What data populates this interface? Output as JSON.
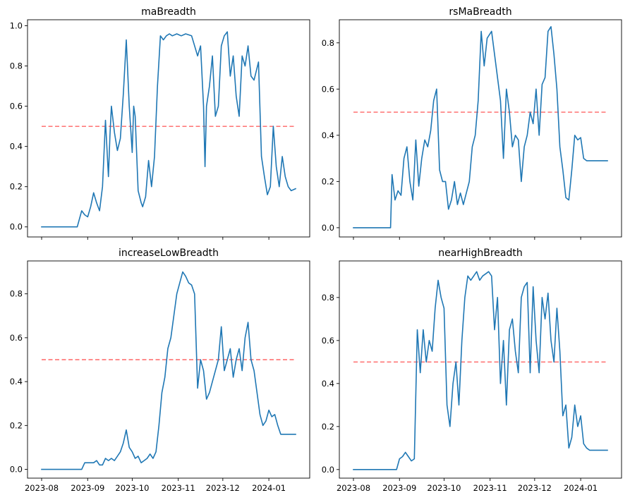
{
  "colors": {
    "series": "#1f77b4",
    "reference": "#ff6666"
  },
  "chart_data": [
    {
      "type": "line",
      "title": "maBreadth",
      "x_range": [
        "2023-08-01",
        "2024-01-19"
      ],
      "ylim": [
        -0.05,
        1.03
      ],
      "y_ticks": [
        0.0,
        0.2,
        0.4,
        0.6,
        0.8,
        1.0
      ],
      "y_tick_labels": [
        "0.0",
        "0.2",
        "0.4",
        "0.6",
        "0.8",
        "1.0"
      ],
      "x_ticks": [
        "2023-08-01",
        "2023-09-01",
        "2023-10-01",
        "2023-11-01",
        "2023-12-01",
        "2024-01-01"
      ],
      "x_tick_labels": [
        "",
        "",
        "",
        "",
        "",
        ""
      ],
      "reference_line": 0.5,
      "x": [
        "2023-08-01",
        "2023-08-25",
        "2023-08-28",
        "2023-08-30",
        "2023-09-01",
        "2023-09-03",
        "2023-09-05",
        "2023-09-07",
        "2023-09-09",
        "2023-09-11",
        "2023-09-13",
        "2023-09-15",
        "2023-09-16",
        "2023-09-17",
        "2023-09-19",
        "2023-09-21",
        "2023-09-23",
        "2023-09-25",
        "2023-09-27",
        "2023-09-29",
        "2023-10-01",
        "2023-10-02",
        "2023-10-03",
        "2023-10-05",
        "2023-10-07",
        "2023-10-08",
        "2023-10-10",
        "2023-10-12",
        "2023-10-14",
        "2023-10-16",
        "2023-10-18",
        "2023-10-20",
        "2023-10-22",
        "2023-10-24",
        "2023-10-26",
        "2023-10-28",
        "2023-10-31",
        "2023-11-03",
        "2023-11-06",
        "2023-11-10",
        "2023-11-14",
        "2023-11-16",
        "2023-11-18",
        "2023-11-19",
        "2023-11-20",
        "2023-11-22",
        "2023-11-24",
        "2023-11-26",
        "2023-11-28",
        "2023-11-30",
        "2023-12-02",
        "2023-12-04",
        "2023-12-06",
        "2023-12-08",
        "2023-12-10",
        "2023-12-12",
        "2023-12-14",
        "2023-12-16",
        "2023-12-18",
        "2023-12-20",
        "2023-12-22",
        "2023-12-25",
        "2023-12-27",
        "2023-12-29",
        "2023-12-31",
        "2024-01-02",
        "2024-01-04",
        "2024-01-06",
        "2024-01-08",
        "2024-01-10",
        "2024-01-12",
        "2024-01-14",
        "2024-01-16",
        "2024-01-19"
      ],
      "series": [
        {
          "values": [
            0.0,
            0.0,
            0.08,
            0.06,
            0.05,
            0.1,
            0.17,
            0.12,
            0.08,
            0.2,
            0.53,
            0.25,
            0.45,
            0.6,
            0.47,
            0.38,
            0.44,
            0.66,
            0.93,
            0.6,
            0.37,
            0.6,
            0.55,
            0.18,
            0.12,
            0.1,
            0.15,
            0.33,
            0.2,
            0.35,
            0.7,
            0.95,
            0.93,
            0.95,
            0.96,
            0.95,
            0.96,
            0.95,
            0.96,
            0.95,
            0.85,
            0.9,
            0.6,
            0.3,
            0.6,
            0.7,
            0.85,
            0.55,
            0.6,
            0.9,
            0.95,
            0.97,
            0.75,
            0.85,
            0.65,
            0.55,
            0.85,
            0.8,
            0.9,
            0.75,
            0.73,
            0.82,
            0.35,
            0.25,
            0.16,
            0.2,
            0.5,
            0.3,
            0.2,
            0.35,
            0.25,
            0.2,
            0.18,
            0.19
          ]
        }
      ]
    },
    {
      "type": "line",
      "title": "rsMaBreadth",
      "x_range": [
        "2023-08-01",
        "2024-01-19"
      ],
      "ylim": [
        -0.04,
        0.9
      ],
      "y_ticks": [
        0.0,
        0.2,
        0.4,
        0.6,
        0.8
      ],
      "y_tick_labels": [
        "0.0",
        "0.2",
        "0.4",
        "0.6",
        "0.8"
      ],
      "x_ticks": [
        "2023-08-01",
        "2023-09-01",
        "2023-10-01",
        "2023-11-01",
        "2023-12-01",
        "2024-01-01"
      ],
      "x_tick_labels": [
        "",
        "",
        "",
        "",
        "",
        ""
      ],
      "reference_line": 0.5,
      "x": [
        "2023-08-01",
        "2023-08-26",
        "2023-08-27",
        "2023-08-29",
        "2023-08-31",
        "2023-09-02",
        "2023-09-04",
        "2023-09-06",
        "2023-09-08",
        "2023-09-10",
        "2023-09-12",
        "2023-09-14",
        "2023-09-16",
        "2023-09-18",
        "2023-09-20",
        "2023-09-22",
        "2023-09-24",
        "2023-09-26",
        "2023-09-28",
        "2023-09-30",
        "2023-10-02",
        "2023-10-04",
        "2023-10-06",
        "2023-10-08",
        "2023-10-10",
        "2023-10-12",
        "2023-10-14",
        "2023-10-16",
        "2023-10-18",
        "2023-10-20",
        "2023-10-22",
        "2023-10-24",
        "2023-10-26",
        "2023-10-28",
        "2023-10-30",
        "2023-11-02",
        "2023-11-04",
        "2023-11-06",
        "2023-11-08",
        "2023-11-10",
        "2023-11-12",
        "2023-11-14",
        "2023-11-16",
        "2023-11-18",
        "2023-11-20",
        "2023-11-22",
        "2023-11-24",
        "2023-11-26",
        "2023-11-28",
        "2023-11-30",
        "2023-12-02",
        "2023-12-04",
        "2023-12-06",
        "2023-12-08",
        "2023-12-10",
        "2023-12-12",
        "2023-12-14",
        "2023-12-16",
        "2023-12-18",
        "2023-12-20",
        "2023-12-22",
        "2023-12-24",
        "2023-12-26",
        "2023-12-28",
        "2023-12-30",
        "2024-01-01",
        "2024-01-03",
        "2024-01-05",
        "2024-01-07",
        "2024-01-09",
        "2024-01-11",
        "2024-01-13",
        "2024-01-15",
        "2024-01-17",
        "2024-01-19"
      ],
      "series": [
        {
          "values": [
            0.0,
            0.0,
            0.23,
            0.12,
            0.16,
            0.14,
            0.3,
            0.35,
            0.2,
            0.12,
            0.38,
            0.18,
            0.3,
            0.38,
            0.35,
            0.42,
            0.55,
            0.6,
            0.25,
            0.2,
            0.2,
            0.08,
            0.12,
            0.2,
            0.1,
            0.15,
            0.1,
            0.15,
            0.2,
            0.35,
            0.4,
            0.55,
            0.85,
            0.7,
            0.82,
            0.85,
            0.75,
            0.65,
            0.55,
            0.3,
            0.6,
            0.5,
            0.35,
            0.4,
            0.38,
            0.2,
            0.35,
            0.4,
            0.5,
            0.45,
            0.6,
            0.4,
            0.62,
            0.65,
            0.85,
            0.87,
            0.75,
            0.6,
            0.35,
            0.25,
            0.13,
            0.12,
            0.25,
            0.4,
            0.38,
            0.39,
            0.3,
            0.29,
            0.29,
            0.29,
            0.29,
            0.29,
            0.29,
            0.29,
            0.29
          ]
        }
      ]
    },
    {
      "type": "line",
      "title": "increaseLowBreadth",
      "x_range": [
        "2023-08-01",
        "2024-01-19"
      ],
      "ylim": [
        -0.04,
        0.95
      ],
      "y_ticks": [
        0.0,
        0.2,
        0.4,
        0.6,
        0.8
      ],
      "y_tick_labels": [
        "0.0",
        "0.2",
        "0.4",
        "0.6",
        "0.8"
      ],
      "x_ticks": [
        "2023-08-01",
        "2023-09-01",
        "2023-10-01",
        "2023-11-01",
        "2023-12-01",
        "2024-01-01"
      ],
      "x_tick_labels": [
        "2023-08",
        "2023-09",
        "2023-10",
        "2023-11",
        "2023-12",
        "2024-01"
      ],
      "reference_line": 0.5,
      "x": [
        "2023-08-01",
        "2023-08-28",
        "2023-08-30",
        "2023-09-01",
        "2023-09-03",
        "2023-09-05",
        "2023-09-07",
        "2023-09-09",
        "2023-09-11",
        "2023-09-13",
        "2023-09-15",
        "2023-09-17",
        "2023-09-19",
        "2023-09-21",
        "2023-09-23",
        "2023-09-25",
        "2023-09-27",
        "2023-09-29",
        "2023-10-01",
        "2023-10-03",
        "2023-10-05",
        "2023-10-07",
        "2023-10-09",
        "2023-10-11",
        "2023-10-13",
        "2023-10-15",
        "2023-10-17",
        "2023-10-19",
        "2023-10-21",
        "2023-10-23",
        "2023-10-25",
        "2023-10-27",
        "2023-10-29",
        "2023-10-31",
        "2023-11-02",
        "2023-11-04",
        "2023-11-06",
        "2023-11-08",
        "2023-11-10",
        "2023-11-12",
        "2023-11-14",
        "2023-11-16",
        "2023-11-18",
        "2023-11-20",
        "2023-11-22",
        "2023-11-24",
        "2023-11-26",
        "2023-11-28",
        "2023-11-30",
        "2023-12-02",
        "2023-12-04",
        "2023-12-06",
        "2023-12-08",
        "2023-12-10",
        "2023-12-12",
        "2023-12-14",
        "2023-12-16",
        "2023-12-18",
        "2023-12-20",
        "2023-12-22",
        "2023-12-24",
        "2023-12-26",
        "2023-12-28",
        "2023-12-30",
        "2024-01-01",
        "2024-01-03",
        "2024-01-05",
        "2024-01-07",
        "2024-01-09",
        "2024-01-11",
        "2024-01-13",
        "2024-01-15",
        "2024-01-17",
        "2024-01-19"
      ],
      "series": [
        {
          "values": [
            0.0,
            0.0,
            0.03,
            0.03,
            0.03,
            0.03,
            0.04,
            0.02,
            0.02,
            0.05,
            0.04,
            0.05,
            0.04,
            0.06,
            0.08,
            0.12,
            0.18,
            0.1,
            0.08,
            0.05,
            0.06,
            0.03,
            0.04,
            0.05,
            0.07,
            0.05,
            0.08,
            0.2,
            0.35,
            0.42,
            0.55,
            0.6,
            0.7,
            0.8,
            0.85,
            0.9,
            0.88,
            0.85,
            0.84,
            0.8,
            0.37,
            0.5,
            0.45,
            0.32,
            0.35,
            0.4,
            0.45,
            0.5,
            0.65,
            0.45,
            0.5,
            0.55,
            0.42,
            0.5,
            0.55,
            0.45,
            0.6,
            0.67,
            0.5,
            0.45,
            0.35,
            0.25,
            0.2,
            0.22,
            0.27,
            0.24,
            0.25,
            0.2,
            0.16,
            0.16,
            0.16,
            0.16,
            0.16,
            0.16
          ]
        }
      ]
    },
    {
      "type": "line",
      "title": "nearHighBreadth",
      "x_range": [
        "2023-08-01",
        "2024-01-19"
      ],
      "ylim": [
        -0.04,
        0.97
      ],
      "y_ticks": [
        0.0,
        0.2,
        0.4,
        0.6,
        0.8
      ],
      "y_tick_labels": [
        "0.0",
        "0.2",
        "0.4",
        "0.6",
        "0.8"
      ],
      "x_ticks": [
        "2023-08-01",
        "2023-09-01",
        "2023-10-01",
        "2023-11-01",
        "2023-12-01",
        "2024-01-01"
      ],
      "x_tick_labels": [
        "2023-08",
        "2023-09",
        "2023-10",
        "2023-11",
        "2023-12",
        "2024-01"
      ],
      "reference_line": 0.5,
      "x": [
        "2023-08-01",
        "2023-08-30",
        "2023-09-01",
        "2023-09-03",
        "2023-09-05",
        "2023-09-07",
        "2023-09-09",
        "2023-09-11",
        "2023-09-13",
        "2023-09-15",
        "2023-09-17",
        "2023-09-19",
        "2023-09-21",
        "2023-09-23",
        "2023-09-25",
        "2023-09-27",
        "2023-09-29",
        "2023-10-01",
        "2023-10-03",
        "2023-10-05",
        "2023-10-07",
        "2023-10-09",
        "2023-10-11",
        "2023-10-13",
        "2023-10-15",
        "2023-10-17",
        "2023-10-19",
        "2023-10-21",
        "2023-10-23",
        "2023-10-25",
        "2023-10-27",
        "2023-10-29",
        "2023-10-31",
        "2023-11-02",
        "2023-11-04",
        "2023-11-06",
        "2023-11-08",
        "2023-11-10",
        "2023-11-12",
        "2023-11-14",
        "2023-11-16",
        "2023-11-18",
        "2023-11-20",
        "2023-11-22",
        "2023-11-24",
        "2023-11-26",
        "2023-11-28",
        "2023-11-30",
        "2023-12-02",
        "2023-12-04",
        "2023-12-06",
        "2023-12-08",
        "2023-12-10",
        "2023-12-12",
        "2023-12-14",
        "2023-12-16",
        "2023-12-18",
        "2023-12-20",
        "2023-12-22",
        "2023-12-24",
        "2023-12-26",
        "2023-12-28",
        "2023-12-30",
        "2024-01-01",
        "2024-01-03",
        "2024-01-05",
        "2024-01-07",
        "2024-01-09",
        "2024-01-11",
        "2024-01-13",
        "2024-01-15",
        "2024-01-17",
        "2024-01-19"
      ],
      "series": [
        {
          "values": [
            0.0,
            0.0,
            0.05,
            0.06,
            0.08,
            0.06,
            0.04,
            0.05,
            0.65,
            0.45,
            0.65,
            0.5,
            0.6,
            0.55,
            0.75,
            0.88,
            0.8,
            0.75,
            0.3,
            0.2,
            0.4,
            0.5,
            0.3,
            0.6,
            0.8,
            0.9,
            0.88,
            0.9,
            0.92,
            0.88,
            0.9,
            0.91,
            0.92,
            0.9,
            0.65,
            0.8,
            0.4,
            0.6,
            0.3,
            0.65,
            0.7,
            0.55,
            0.45,
            0.8,
            0.85,
            0.87,
            0.45,
            0.85,
            0.6,
            0.45,
            0.8,
            0.7,
            0.82,
            0.6,
            0.5,
            0.75,
            0.55,
            0.25,
            0.3,
            0.1,
            0.15,
            0.3,
            0.2,
            0.25,
            0.12,
            0.1,
            0.09,
            0.09,
            0.09,
            0.09,
            0.09,
            0.09,
            0.09
          ]
        }
      ]
    }
  ]
}
